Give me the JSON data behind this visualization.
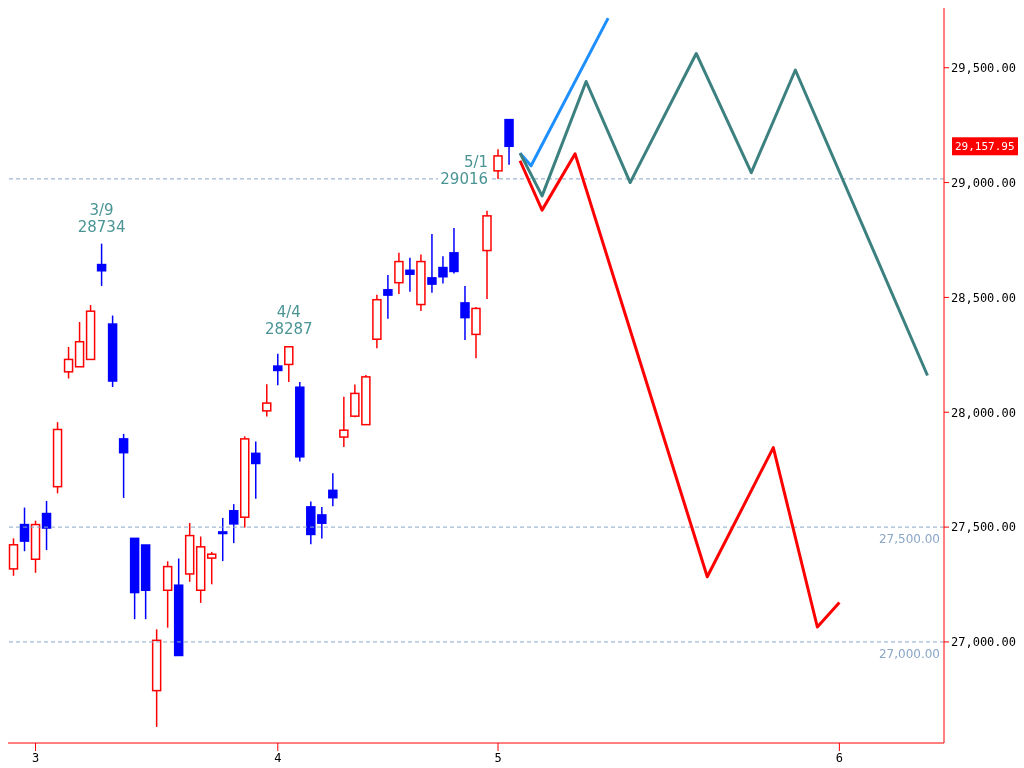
{
  "chart_data": {
    "type": "candlestick",
    "categories": [
      null,
      null,
      "3",
      null,
      null,
      null,
      null,
      null,
      null,
      null,
      null,
      null,
      null,
      null,
      null,
      null,
      null,
      null,
      null,
      null,
      null,
      null,
      null,
      null,
      "4",
      null,
      null,
      null,
      null,
      null,
      null,
      null,
      null,
      null,
      null,
      null,
      null,
      null,
      null,
      null,
      null,
      null,
      null,
      null,
      "5",
      null,
      null,
      null,
      null,
      null,
      null,
      null,
      null,
      null,
      null,
      null,
      null,
      null,
      null,
      null,
      null,
      null,
      null,
      null,
      null,
      null,
      null,
      null,
      null,
      null,
      null,
      null,
      null,
      null,
      null,
      "6",
      null,
      null,
      null,
      null,
      null,
      null,
      null,
      null,
      null
    ],
    "ohlc": [
      [
        27318,
        27451,
        27288,
        27423
      ],
      [
        27511,
        27585,
        27395,
        27439
      ],
      [
        27360,
        27528,
        27301,
        27511
      ],
      [
        27559,
        27614,
        27400,
        27496
      ],
      [
        27676,
        27957,
        27647,
        27925
      ],
      [
        28176,
        28284,
        28147,
        28230
      ],
      [
        28198,
        28393,
        28198,
        28307
      ],
      [
        28230,
        28467,
        28230,
        28440
      ],
      [
        28643,
        28734,
        28550,
        28616
      ],
      [
        28384,
        28421,
        28110,
        28136
      ],
      [
        27884,
        27906,
        27627,
        27824
      ],
      [
        27451,
        27451,
        27099,
        27215
      ],
      [
        27422,
        27422,
        27099,
        27225
      ],
      [
        26788,
        27055,
        26630,
        27007
      ],
      [
        27225,
        27351,
        27062,
        27328
      ],
      [
        27247,
        27363,
        26941,
        26941
      ],
      [
        27296,
        27518,
        27262,
        27463
      ],
      [
        27225,
        27459,
        27170,
        27414
      ],
      [
        27365,
        27392,
        27251,
        27382
      ],
      [
        27479,
        27540,
        27352,
        27472
      ],
      [
        27571,
        27600,
        27430,
        27514
      ],
      [
        27543,
        27895,
        27498,
        27884
      ],
      [
        27821,
        27873,
        27623,
        27777
      ],
      [
        28006,
        28122,
        27982,
        28040
      ],
      [
        28201,
        28255,
        28118,
        28182
      ],
      [
        28208,
        28287,
        28132,
        28285
      ],
      [
        28109,
        28132,
        27786,
        27806
      ],
      [
        27588,
        27611,
        27425,
        27468
      ],
      [
        27553,
        27588,
        27450,
        27517
      ],
      [
        27660,
        27734,
        27591,
        27628
      ],
      [
        27892,
        28068,
        27849,
        27922
      ],
      [
        27983,
        28121,
        27978,
        28082
      ],
      [
        27946,
        28162,
        27946,
        28154
      ],
      [
        28318,
        28512,
        28279,
        28490
      ],
      [
        28533,
        28598,
        28407,
        28510
      ],
      [
        28564,
        28694,
        28515,
        28656
      ],
      [
        28618,
        28673,
        28525,
        28601
      ],
      [
        28469,
        28687,
        28441,
        28656
      ],
      [
        28585,
        28776,
        28520,
        28558
      ],
      [
        28630,
        28679,
        28561,
        28590
      ],
      [
        28694,
        28802,
        28604,
        28613
      ],
      [
        28476,
        28550,
        28315,
        28412
      ],
      [
        28339,
        28458,
        28235,
        28452
      ],
      [
        28704,
        28877,
        28493,
        28855
      ],
      [
        29051,
        29145,
        29016,
        29116
      ],
      [
        29274,
        29274,
        29078,
        29157.95
      ],
      null,
      null,
      null,
      null,
      null,
      null,
      null,
      null,
      null,
      null,
      null,
      null,
      null,
      null,
      null,
      null,
      null,
      null,
      null,
      null,
      null,
      null,
      null,
      null,
      null,
      null,
      null,
      null,
      null,
      null,
      null,
      null,
      null,
      null,
      null,
      null,
      null,
      null,
      null
    ],
    "colors": [
      "#ff0000",
      "#0000ff",
      "#ff0000",
      "#0000ff",
      "#ff0000",
      "#ff0000",
      "#ff0000",
      "#ff0000",
      "#0000ff",
      "#0000ff",
      "#0000ff",
      "#0000ff",
      "#0000ff",
      "#ff0000",
      "#ff0000",
      "#0000ff",
      "#ff0000",
      "#ff0000",
      "#ff0000",
      "#0000ff",
      "#0000ff",
      "#ff0000",
      "#0000ff",
      "#ff0000",
      "#0000ff",
      "#ff0000",
      "#0000ff",
      "#0000ff",
      "#0000ff",
      "#0000ff",
      "#ff0000",
      "#ff0000",
      "#ff0000",
      "#ff0000",
      "#0000ff",
      "#ff0000",
      "#0000ff",
      "#ff0000",
      "#0000ff",
      "#0000ff",
      "#0000ff",
      "#0000ff",
      "#ff0000",
      "#ff0000",
      "#ff0000",
      "#0000ff",
      null,
      null,
      null,
      null,
      null,
      null,
      null,
      null,
      null,
      null,
      null,
      null,
      null,
      null,
      null,
      null,
      null,
      null,
      null,
      null,
      null,
      null,
      null,
      null,
      null,
      null,
      null,
      null,
      null,
      null,
      null,
      null,
      null,
      null,
      null,
      null,
      null,
      null,
      null
    ],
    "series": [
      {
        "type": "line",
        "color": "#1e8fff",
        "values": [
          null,
          null,
          null,
          null,
          null,
          null,
          null,
          null,
          null,
          null,
          null,
          null,
          null,
          null,
          null,
          null,
          null,
          null,
          null,
          null,
          null,
          null,
          null,
          null,
          null,
          null,
          null,
          null,
          null,
          null,
          null,
          null,
          null,
          null,
          null,
          null,
          null,
          null,
          null,
          null,
          null,
          null,
          null,
          null,
          null,
          null,
          29128,
          29073,
          null,
          null,
          null,
          null,
          null,
          null,
          29716,
          null,
          null,
          null,
          null,
          null,
          null,
          null,
          null,
          null,
          null,
          null,
          null,
          null,
          null,
          null,
          null,
          null,
          null,
          null,
          null,
          null,
          null,
          null,
          null,
          null,
          null,
          null,
          null,
          null,
          null
        ]
      },
      {
        "type": "line",
        "color": "#3d8080",
        "values": [
          null,
          null,
          null,
          null,
          null,
          null,
          null,
          null,
          null,
          null,
          null,
          null,
          null,
          null,
          null,
          null,
          null,
          null,
          null,
          null,
          null,
          null,
          null,
          null,
          null,
          null,
          null,
          null,
          null,
          null,
          null,
          null,
          null,
          null,
          null,
          null,
          null,
          null,
          null,
          null,
          null,
          null,
          null,
          null,
          null,
          null,
          29128,
          null,
          28942,
          null,
          null,
          null,
          29440,
          null,
          null,
          null,
          29000,
          null,
          null,
          null,
          null,
          null,
          29562,
          null,
          null,
          null,
          null,
          29043,
          null,
          null,
          null,
          29490,
          null,
          null,
          null,
          null,
          null,
          null,
          null,
          null,
          null,
          null,
          null,
          28160,
          null
        ]
      },
      {
        "type": "line",
        "color": "#ff0000",
        "values": [
          null,
          null,
          null,
          null,
          null,
          null,
          null,
          null,
          null,
          null,
          null,
          null,
          null,
          null,
          null,
          null,
          null,
          null,
          null,
          null,
          null,
          null,
          null,
          null,
          null,
          null,
          null,
          null,
          null,
          null,
          null,
          null,
          null,
          null,
          null,
          null,
          null,
          null,
          null,
          null,
          null,
          null,
          null,
          null,
          null,
          null,
          29095,
          null,
          28880,
          null,
          null,
          29125,
          null,
          null,
          null,
          null,
          null,
          null,
          null,
          null,
          null,
          null,
          null,
          27284,
          null,
          null,
          null,
          null,
          null,
          27846,
          null,
          null,
          null,
          27065,
          null,
          27172,
          null,
          null,
          null,
          null,
          null,
          null,
          null,
          null,
          null
        ]
      }
    ],
    "marker": "none",
    "line_style": "solid",
    "ylim": [
      26560,
      29760
    ],
    "yticks": [
      {
        "value": 27000,
        "label": "27,000.00"
      },
      {
        "value": 27500,
        "label": "27,500.00"
      },
      {
        "value": 28000,
        "label": "28,000.00"
      },
      {
        "value": 28500,
        "label": "28,500.00"
      },
      {
        "value": 29000,
        "label": "29,000.00"
      },
      {
        "value": 29500,
        "label": "29,500.00"
      }
    ],
    "ref_lines": [
      {
        "axis": "y",
        "value": 27500,
        "label": "27,500.00",
        "color": "#8aa6c8",
        "line_style": "dashed"
      },
      {
        "axis": "y",
        "value": 27000,
        "label": "27,000.00",
        "color": "#8aa6c8",
        "line_style": "dashed"
      },
      {
        "axis": "y",
        "value": 29016,
        "label": null,
        "color": "#8aa6c8",
        "line_style": "dashed"
      }
    ],
    "annotations": [
      {
        "text": "3/9\n28734",
        "y": 28734
      },
      {
        "text": "4/4\n28287",
        "y": 28287
      },
      {
        "text": "5/1\n29016",
        "x": "5",
        "y": 29016
      },
      "29,157.95"
    ]
  }
}
